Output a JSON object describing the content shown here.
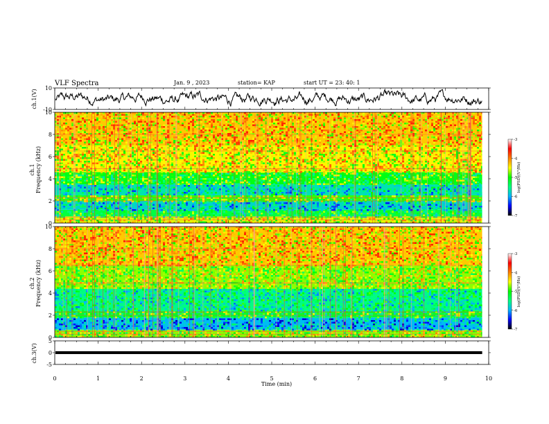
{
  "header": {
    "title": "VLF Spectra",
    "date": "Jan. 9 , 2023",
    "station": "station= KAP",
    "start": "start UT = 23: 40: 1"
  },
  "colors": {
    "spectrum": [
      "#000000",
      "#0000ff",
      "#00b4ff",
      "#00ff80",
      "#00ff00",
      "#ffff00",
      "#ff8000",
      "#ff0000",
      "#ffffff"
    ],
    "waveform": "#000000"
  },
  "chart_data": [
    {
      "type": "line",
      "panel": "ch1-waveform",
      "ylabel": "ch.1(V)",
      "ylim": [
        -10,
        10
      ],
      "yticks": [
        "10",
        "-10"
      ],
      "xlim": [
        0,
        10
      ],
      "description_values": "noisy waveform fluctuating between about -7 and +8 V around a mean near 0 V"
    },
    {
      "type": "heatmap",
      "panel": "ch1-spectrogram",
      "ylabel": "ch.1",
      "ylabel2": "Frequency (kHz)",
      "ylim": [
        0,
        10
      ],
      "yticks": [
        "0",
        "2",
        "4",
        "6",
        "8",
        "10"
      ],
      "xlim": [
        0,
        9.85
      ],
      "colorbar": {
        "label": "log(PSD)(V²/Hz)",
        "ticks": [
          "-3",
          "-4",
          "-5",
          "-6",
          "-7"
        ],
        "range": [
          -7,
          -3
        ]
      },
      "bands": [
        {
          "freq_khz": [
            0,
            0.6
          ],
          "log_psd": -4.2
        },
        {
          "freq_khz": [
            0.6,
            1.2
          ],
          "log_psd": -5.0
        },
        {
          "freq_khz": [
            1.2,
            2.0
          ],
          "log_psd": -5.6
        },
        {
          "freq_khz": [
            2.0,
            2.5
          ],
          "log_psd": -4.6
        },
        {
          "freq_khz": [
            2.5,
            3.5
          ],
          "log_psd": -5.5
        },
        {
          "freq_khz": [
            3.5,
            4.6
          ],
          "log_psd": -4.8
        },
        {
          "freq_khz": [
            4.6,
            7.0
          ],
          "log_psd": -4.1
        },
        {
          "freq_khz": [
            7.0,
            10.0
          ],
          "log_psd": -3.9
        }
      ]
    },
    {
      "type": "heatmap",
      "panel": "ch2-spectrogram",
      "ylabel": "ch.2",
      "ylabel2": "Frequency (kHz)",
      "ylim": [
        0,
        10
      ],
      "yticks": [
        "0",
        "2",
        "4",
        "6",
        "8",
        "10"
      ],
      "xlim": [
        0,
        9.85
      ],
      "colorbar": {
        "label": "log(PSD)(V²/Hz)",
        "ticks": [
          "-3",
          "-4",
          "-5",
          "-6",
          "-7"
        ],
        "range": [
          -7,
          -3
        ]
      },
      "bands": [
        {
          "freq_khz": [
            0,
            0.7
          ],
          "log_psd": -4.4
        },
        {
          "freq_khz": [
            0.7,
            1.8
          ],
          "log_psd": -5.8
        },
        {
          "freq_khz": [
            1.8,
            2.4
          ],
          "log_psd": -4.9
        },
        {
          "freq_khz": [
            2.4,
            4.4
          ],
          "log_psd": -5.3
        },
        {
          "freq_khz": [
            4.4,
            6.5
          ],
          "log_psd": -4.4
        },
        {
          "freq_khz": [
            6.5,
            10.0
          ],
          "log_psd": -3.9
        }
      ]
    },
    {
      "type": "line",
      "panel": "ch3-waveform",
      "ylabel": "ch.3(V)",
      "ylim": [
        -5,
        5
      ],
      "yticks": [
        "5",
        "0",
        "-5"
      ],
      "xlim": [
        0,
        10
      ],
      "xlabel": "Time (min)",
      "xticks": [
        "0",
        "1",
        "2",
        "3",
        "4",
        "5",
        "6",
        "7",
        "8",
        "9",
        "10"
      ],
      "description_values": "flat signal at about 0 V with a thick band of roughly ±0.6 V"
    }
  ]
}
